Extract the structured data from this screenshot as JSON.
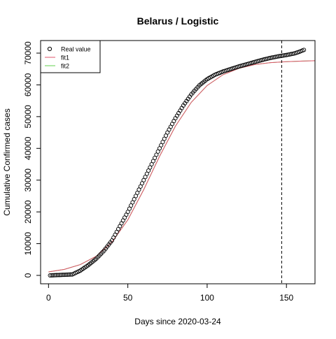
{
  "chart_data": {
    "type": "scatter",
    "title": "Belarus / Logistic",
    "x_label": "Days since 2020-03-24",
    "y_label": "Cumulative Confirmed cases",
    "xlim": [
      -5,
      168
    ],
    "ylim": [
      -2640,
      73960
    ],
    "xticks": [
      0,
      50,
      100,
      150
    ],
    "yticks": [
      0,
      10000,
      20000,
      30000,
      40000,
      50000,
      60000,
      70000
    ],
    "vline": 147,
    "legend": "topleft",
    "series": [
      {
        "name": "Real value",
        "mark": "points",
        "color": "#000000",
        "x": [
          1,
          2,
          3,
          4,
          5,
          6,
          7,
          8,
          9,
          10,
          11,
          12,
          13,
          14,
          15,
          16,
          17,
          18,
          19,
          20,
          21,
          22,
          23,
          24,
          25,
          26,
          27,
          28,
          29,
          30,
          31,
          32,
          33,
          34,
          35,
          36,
          37,
          38,
          39,
          40,
          41,
          42,
          43,
          44,
          45,
          46,
          47,
          48,
          49,
          50,
          51,
          52,
          53,
          54,
          55,
          56,
          57,
          58,
          59,
          60,
          61,
          62,
          63,
          64,
          65,
          66,
          67,
          68,
          69,
          70,
          71,
          72,
          73,
          74,
          75,
          76,
          77,
          78,
          79,
          80,
          81,
          82,
          83,
          84,
          85,
          86,
          87,
          88,
          89,
          90,
          91,
          92,
          93,
          94,
          95,
          96,
          97,
          98,
          99,
          100,
          101,
          102,
          103,
          104,
          105,
          106,
          107,
          108,
          109,
          110,
          111,
          112,
          113,
          114,
          115,
          116,
          117,
          118,
          119,
          120,
          121,
          122,
          123,
          124,
          125,
          126,
          127,
          128,
          129,
          130,
          131,
          132,
          133,
          134,
          135,
          136,
          137,
          138,
          139,
          140,
          141,
          142,
          143,
          144,
          145,
          146,
          147,
          148,
          149,
          150,
          151,
          152,
          153,
          154,
          155,
          156,
          157,
          158,
          159,
          160,
          161
        ],
        "values": [
          0,
          20,
          40,
          60,
          90,
          110,
          130,
          150,
          170,
          190,
          210,
          240,
          260,
          280,
          300,
          540,
          780,
          1020,
          1260,
          1500,
          1840,
          2180,
          2520,
          2860,
          3200,
          3600,
          4000,
          4400,
          4800,
          5200,
          5720,
          6240,
          6760,
          7280,
          7800,
          8440,
          9080,
          9720,
          10360,
          11000,
          11900,
          12800,
          13700,
          14600,
          15500,
          16400,
          17300,
          18200,
          19100,
          20000,
          21000,
          22000,
          23000,
          24000,
          25000,
          26000,
          27000,
          28000,
          29000,
          30000,
          31000,
          32000,
          33000,
          34000,
          35000,
          36000,
          37000,
          38000,
          39000,
          40000,
          41000,
          42000,
          43000,
          44000,
          45000,
          45900,
          46800,
          47700,
          48600,
          49500,
          50300,
          51100,
          51900,
          52700,
          53500,
          54200,
          54900,
          55600,
          56300,
          57000,
          57560,
          58120,
          58680,
          59240,
          59800,
          60200,
          60600,
          61000,
          61400,
          61800,
          62080,
          62360,
          62640,
          62920,
          63200,
          63400,
          63600,
          63800,
          64000,
          64200,
          64360,
          64520,
          64680,
          64840,
          65000,
          65160,
          65320,
          65480,
          65640,
          65800,
          65940,
          66080,
          66220,
          66360,
          66500,
          66640,
          66780,
          66920,
          67060,
          67200,
          67340,
          67480,
          67620,
          67760,
          67900,
          68020,
          68140,
          68260,
          68380,
          68500,
          68600,
          68700,
          68800,
          68900,
          69000,
          69080,
          69160,
          69240,
          69320,
          69400,
          69500,
          69600,
          69700,
          69800,
          69900,
          70070,
          70230,
          70400,
          70600,
          70800,
          71000
        ]
      },
      {
        "name": "fit1",
        "mark": "line",
        "color": "#df536b",
        "x": [
          0,
          10,
          20,
          30,
          40,
          50,
          60,
          70,
          80,
          90,
          100,
          110,
          120,
          130,
          140,
          150,
          160,
          168
        ],
        "values": [
          1100,
          1900,
          3400,
          6000,
          10500,
          17500,
          27000,
          37500,
          47000,
          54500,
          59800,
          63200,
          65200,
          66400,
          67000,
          67300,
          67500,
          67600
        ]
      },
      {
        "name": "fit2",
        "mark": "line",
        "color": "#61d04f",
        "x": [
          0,
          10,
          20,
          30,
          40,
          50,
          60,
          70,
          80,
          90,
          100,
          110,
          120,
          130,
          140,
          150,
          160,
          168
        ],
        "values": [
          1100,
          1900,
          3400,
          6000,
          10500,
          17500,
          27000,
          37500,
          47000,
          54500,
          59800,
          63200,
          65200,
          66400,
          67000,
          67300,
          67500,
          67600
        ]
      }
    ]
  }
}
